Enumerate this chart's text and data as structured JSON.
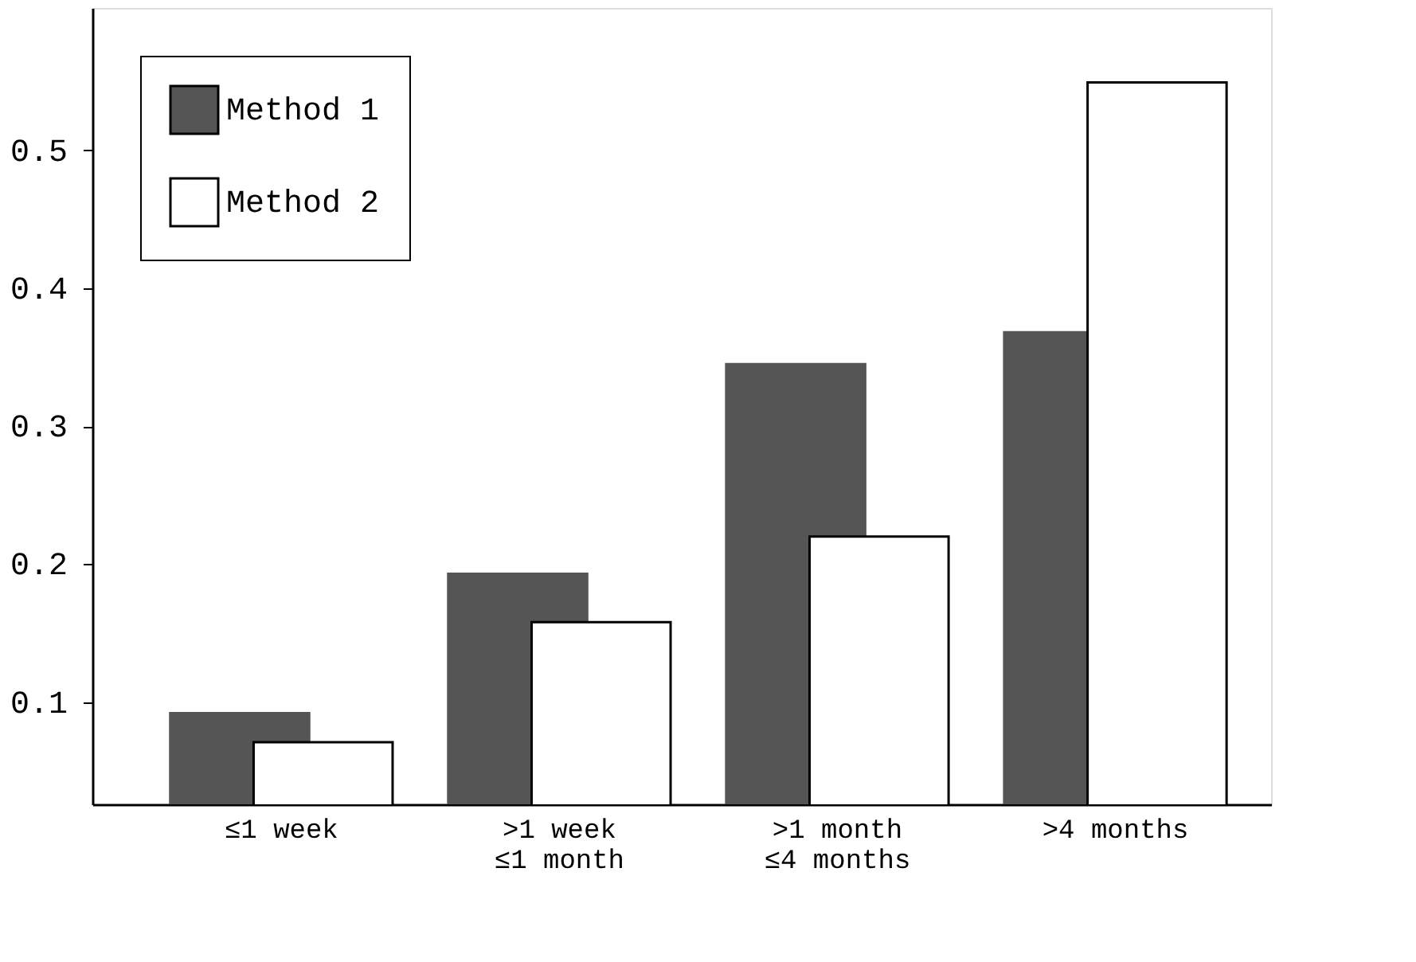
{
  "chart_data": {
    "type": "bar",
    "categories": [
      "≤1 week",
      ">1 week\n≤1 month",
      ">1 month\n≤4 months",
      ">4 months"
    ],
    "series": [
      {
        "name": "Method 1",
        "color": "#555555",
        "values": [
          0.092,
          0.193,
          0.345,
          0.368
        ]
      },
      {
        "name": "Method 2",
        "color": "#ffffff",
        "values": [
          0.071,
          0.158,
          0.22,
          0.549
        ]
      }
    ],
    "ylim": [
      0.026,
      0.603
    ],
    "yticks": [
      0.1,
      0.2,
      0.3,
      0.4,
      0.5
    ],
    "grid": false,
    "legend": "top left"
  }
}
